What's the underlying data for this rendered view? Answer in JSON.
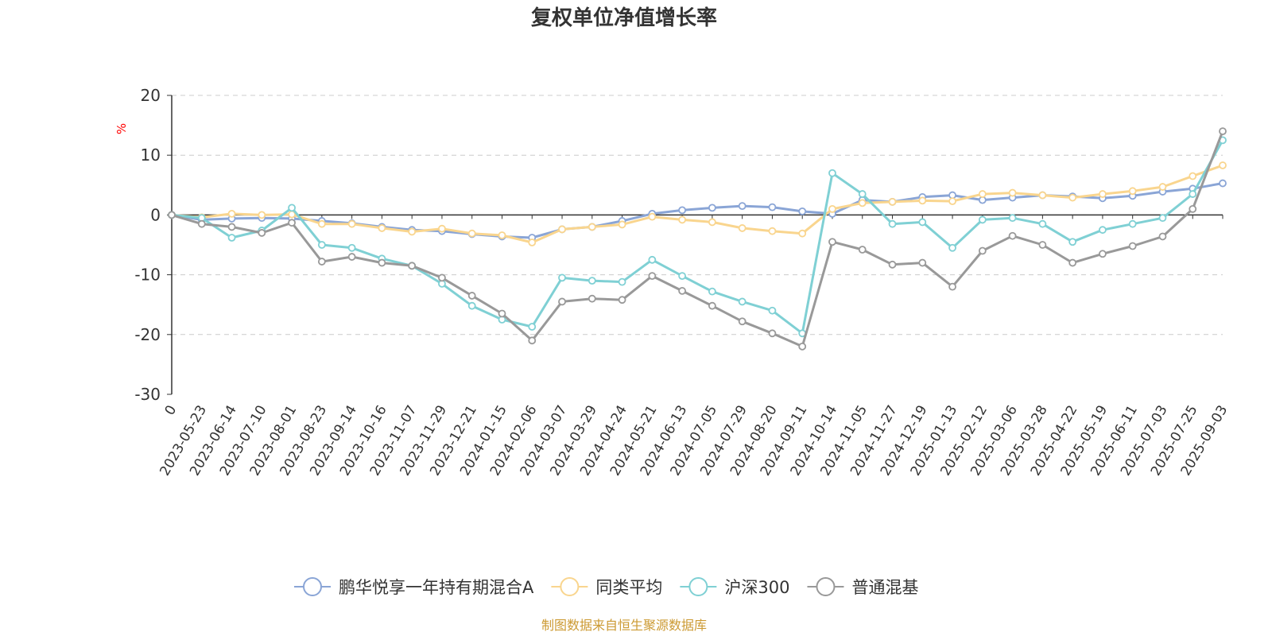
{
  "chart_data": {
    "type": "line",
    "title": "复权单位净值增长率",
    "y_unit": "%",
    "ylim": [
      -30,
      20
    ],
    "yticks": [
      20,
      10,
      0,
      -10,
      -20,
      -30
    ],
    "grid": true,
    "legend_position": "bottom",
    "x_labels": [
      "0",
      "2023-05-23",
      "2023-06-14",
      "2023-07-10",
      "2023-08-01",
      "2023-08-23",
      "2023-09-14",
      "2023-10-16",
      "2023-11-07",
      "2023-11-29",
      "2023-12-21",
      "2024-01-15",
      "2024-02-06",
      "2024-03-07",
      "2024-03-29",
      "2024-04-24",
      "2024-05-21",
      "2024-06-13",
      "2024-07-05",
      "2024-07-29",
      "2024-08-20",
      "2024-09-11",
      "2024-10-14",
      "2024-11-05",
      "2024-11-27",
      "2024-12-19",
      "2025-01-13",
      "2025-02-12",
      "2025-03-06",
      "2025-03-28",
      "2025-04-22",
      "2025-05-19",
      "2025-06-11",
      "2025-07-03",
      "2025-07-25",
      "2025-09-03"
    ],
    "series": [
      {
        "name": "鹏华悦享一年持有期混合A",
        "color": "#8aa5d6",
        "values": [
          0,
          -0.8,
          -0.6,
          -0.5,
          -0.6,
          -1.0,
          -1.4,
          -2.0,
          -2.5,
          -2.7,
          -3.2,
          -3.6,
          -3.8,
          -2.4,
          -2.0,
          -1.0,
          0.2,
          0.8,
          1.2,
          1.5,
          1.3,
          0.6,
          0.2,
          2.5,
          2.2,
          3.0,
          3.3,
          2.5,
          2.9,
          3.3,
          3.1,
          2.8,
          3.2,
          3.9,
          4.4,
          5.3
        ]
      },
      {
        "name": "同类平均",
        "color": "#f9d58e",
        "values": [
          0,
          -0.4,
          0.2,
          0.0,
          0.1,
          -1.5,
          -1.5,
          -2.2,
          -2.8,
          -2.3,
          -3.1,
          -3.4,
          -4.6,
          -2.4,
          -2.0,
          -1.6,
          -0.3,
          -0.8,
          -1.2,
          -2.2,
          -2.7,
          -3.1,
          1.0,
          2.0,
          2.2,
          2.4,
          2.3,
          3.5,
          3.7,
          3.3,
          2.9,
          3.5,
          4.0,
          4.7,
          6.5,
          8.3
        ]
      },
      {
        "name": "沪深300",
        "color": "#7fd0d4",
        "values": [
          0,
          -0.5,
          -3.8,
          -2.6,
          1.2,
          -5.0,
          -5.5,
          -7.3,
          -8.5,
          -11.5,
          -15.2,
          -17.5,
          -18.7,
          -10.5,
          -11.0,
          -11.2,
          -7.5,
          -10.2,
          -12.8,
          -14.5,
          -16.0,
          -19.8,
          7.0,
          3.5,
          -1.5,
          -1.2,
          -5.5,
          -0.8,
          -0.5,
          -1.5,
          -4.5,
          -2.5,
          -1.5,
          -0.5,
          3.5,
          12.5
        ]
      },
      {
        "name": "普通混基",
        "color": "#999999",
        "values": [
          0,
          -1.5,
          -2.0,
          -3.0,
          -1.3,
          -7.8,
          -7.0,
          -8.0,
          -8.5,
          -10.5,
          -13.5,
          -16.5,
          -21.0,
          -14.5,
          -14.0,
          -14.2,
          -10.2,
          -12.7,
          -15.2,
          -17.8,
          -19.8,
          -22.0,
          -4.5,
          -5.8,
          -8.3,
          -8.0,
          -12.0,
          -6.0,
          -3.5,
          -5.0,
          -8.0,
          -6.5,
          -5.2,
          -3.6,
          1.0,
          14.0
        ]
      }
    ]
  },
  "footer": {
    "source": "制图数据来自恒生聚源数据库"
  },
  "colors": {
    "text": "#333333",
    "unit": "#ff0000",
    "grid": "#cccccc",
    "source": "#cc9a33"
  }
}
